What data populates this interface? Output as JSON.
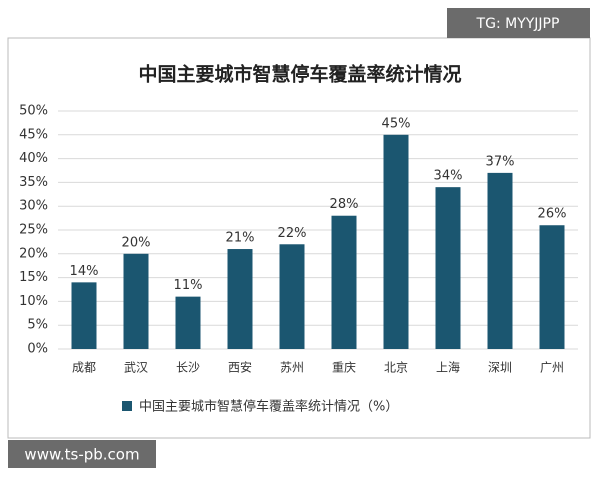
{
  "chart_data": {
    "type": "bar",
    "title": "中国主要城市智慧停车覆盖率统计情况",
    "categories": [
      "成都",
      "武汉",
      "长沙",
      "西安",
      "苏州",
      "重庆",
      "北京",
      "上海",
      "深圳",
      "广州"
    ],
    "series": [
      {
        "name": "中国主要城市智慧停车覆盖率统计情况（%）",
        "color": "#1b5670",
        "values": [
          14,
          20,
          11,
          21,
          22,
          28,
          45,
          34,
          37,
          26
        ],
        "value_labels": [
          "14%",
          "20%",
          "11%",
          "21%",
          "22%",
          "28%",
          "45%",
          "34%",
          "37%",
          "26%"
        ]
      }
    ],
    "ylim": [
      0,
      50
    ],
    "yticks": [
      {
        "value": 0,
        "label": "0%"
      },
      {
        "value": 5,
        "label": "5%"
      },
      {
        "value": 10,
        "label": "10%"
      },
      {
        "value": 15,
        "label": "15%"
      },
      {
        "value": 20,
        "label": "20%"
      },
      {
        "value": 25,
        "label": "25%"
      },
      {
        "value": 30,
        "label": "30%"
      },
      {
        "value": 35,
        "label": "35%"
      },
      {
        "value": 40,
        "label": "40%"
      },
      {
        "value": 45,
        "label": "45%"
      },
      {
        "value": 50,
        "label": "50%"
      }
    ],
    "grid": true,
    "legend": "bottom",
    "annotations": [
      "TG: MYYJJPP",
      "www.ts-pb.com"
    ]
  }
}
